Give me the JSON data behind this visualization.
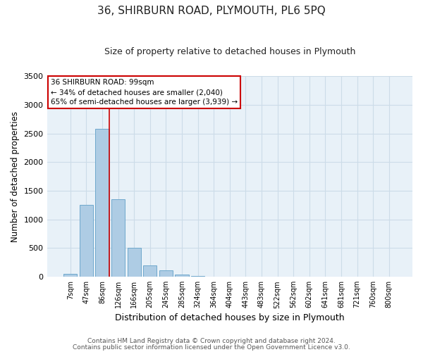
{
  "title": "36, SHIRBURN ROAD, PLYMOUTH, PL6 5PQ",
  "subtitle": "Size of property relative to detached houses in Plymouth",
  "xlabel": "Distribution of detached houses by size in Plymouth",
  "ylabel": "Number of detached properties",
  "bar_labels": [
    "7sqm",
    "47sqm",
    "86sqm",
    "126sqm",
    "166sqm",
    "205sqm",
    "245sqm",
    "285sqm",
    "324sqm",
    "364sqm",
    "404sqm",
    "443sqm",
    "483sqm",
    "522sqm",
    "562sqm",
    "602sqm",
    "641sqm",
    "681sqm",
    "721sqm",
    "760sqm",
    "800sqm"
  ],
  "bar_values": [
    50,
    1250,
    2580,
    1350,
    500,
    200,
    110,
    40,
    20,
    5,
    2,
    1,
    0,
    0,
    0,
    0,
    0,
    0,
    0,
    0,
    0
  ],
  "bar_color": "#aecce4",
  "bar_edge_color": "#6fa8cc",
  "vline_x_index": 2,
  "vline_color": "#cc0000",
  "ylim": [
    0,
    3500
  ],
  "yticks": [
    0,
    500,
    1000,
    1500,
    2000,
    2500,
    3000,
    3500
  ],
  "annotation_title": "36 SHIRBURN ROAD: 99sqm",
  "annotation_line2": "← 34% of detached houses are smaller (2,040)",
  "annotation_line3": "65% of semi-detached houses are larger (3,939) →",
  "annotation_box_facecolor": "#ffffff",
  "annotation_box_edgecolor": "#cc0000",
  "footnote1": "Contains HM Land Registry data © Crown copyright and database right 2024.",
  "footnote2": "Contains public sector information licensed under the Open Government Licence v3.0.",
  "grid_color": "#ccdce8",
  "background_color": "#e8f1f8",
  "title_fontsize": 11,
  "subtitle_fontsize": 9,
  "ylabel_fontsize": 8.5,
  "xlabel_fontsize": 9,
  "xtick_fontsize": 7,
  "ytick_fontsize": 8,
  "footnote_fontsize": 6.5
}
